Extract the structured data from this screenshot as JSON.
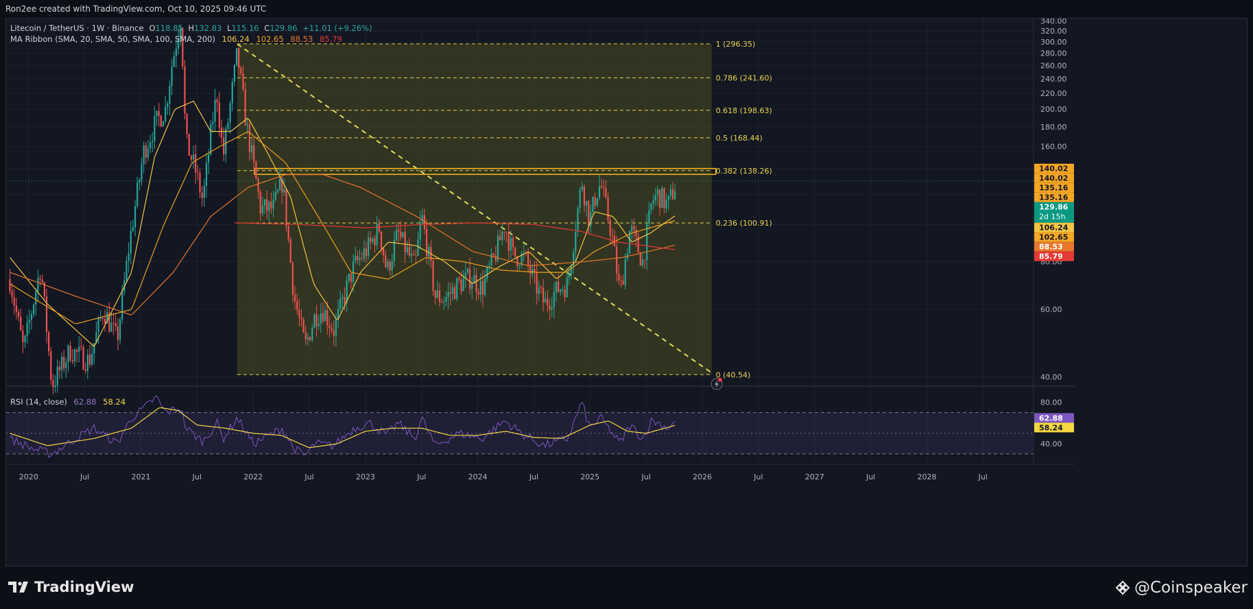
{
  "header": {
    "caption": "Ron2ee created with TradingView.com, Oct 10, 2025 09:46 UTC",
    "symbol": "Litecoin / TetherUS · 1W · Binance",
    "ohlc": {
      "o_label": "O",
      "o": "118.85",
      "h_label": "H",
      "h": "132.83",
      "l_label": "L",
      "l": "115.16",
      "c_label": "C",
      "c": "129.86",
      "change": "+11.01 (+9.26%)"
    },
    "ma_ribbon": {
      "label": "MA Ribbon (SMA, 20, SMA, 50, SMA, 100, SMA, 200)",
      "values": [
        "106.24",
        "102.65",
        "88.53",
        "85.79"
      ]
    },
    "rsi": {
      "label": "RSI (14, close)",
      "value": "62.88",
      "ma": "58.24"
    }
  },
  "footer": {
    "left_brand": "TradingView",
    "right_brand": "@Coinspeaker"
  },
  "colors": {
    "bull": "#26a69a",
    "bear": "#ef5350",
    "ma20": "#f5c542",
    "ma50": "#f0a020",
    "ma100": "#e8762b",
    "ma200": "#e53935",
    "fib": "#e8d44d",
    "rsi": "#7e57c2",
    "rsi_ma": "#f5d742",
    "price_tag": "#089981",
    "grid": "#1e222d"
  },
  "chart_data": [
    {
      "type": "candlestick",
      "title": "Litecoin / TetherUS · 1W · Binance",
      "xlabel": "",
      "ylabel": "",
      "ylim": [
        40,
        345
      ],
      "x_ticks": [
        "2020",
        "Jul",
        "2021",
        "Jul",
        "2022",
        "Jul",
        "2023",
        "Jul",
        "2024",
        "Jul",
        "2025",
        "Jul",
        "2026",
        "Jul",
        "2027",
        "Jul",
        "2028",
        "Jul"
      ],
      "y_ticks": [
        "340.00",
        "320.00",
        "300.00",
        "280.00",
        "260.00",
        "240.00",
        "220.00",
        "200.00",
        "180.00",
        "160.00",
        "140.00",
        "120.00",
        "100.00",
        "80.00",
        "60.00",
        "40.00"
      ],
      "price_anchors": [
        [
          "2019-11-01",
          72
        ],
        [
          "2019-12-15",
          47
        ],
        [
          "2020-02-10",
          78
        ],
        [
          "2020-03-16",
          38
        ],
        [
          "2020-05-15",
          47
        ],
        [
          "2020-07-15",
          44
        ],
        [
          "2020-09-01",
          60
        ],
        [
          "2020-10-15",
          50
        ],
        [
          "2020-11-25",
          90
        ],
        [
          "2021-01-10",
          155
        ],
        [
          "2021-02-20",
          185
        ],
        [
          "2021-03-20",
          200
        ],
        [
          "2021-04-10",
          260
        ],
        [
          "2021-05-10",
          350
        ],
        [
          "2021-05-25",
          165
        ],
        [
          "2021-06-25",
          140
        ],
        [
          "2021-07-20",
          115
        ],
        [
          "2021-08-20",
          185
        ],
        [
          "2021-09-05",
          220
        ],
        [
          "2021-09-25",
          150
        ],
        [
          "2021-11-10",
          280
        ],
        [
          "2021-12-10",
          180
        ],
        [
          "2021-12-31",
          145
        ],
        [
          "2022-01-25",
          110
        ],
        [
          "2022-03-05",
          110
        ],
        [
          "2022-04-05",
          130
        ],
        [
          "2022-05-12",
          65
        ],
        [
          "2022-06-18",
          48
        ],
        [
          "2022-07-20",
          58
        ],
        [
          "2022-08-15",
          60
        ],
        [
          "2022-09-20",
          53
        ],
        [
          "2022-11-05",
          70
        ],
        [
          "2022-11-25",
          78
        ],
        [
          "2023-01-15",
          88
        ],
        [
          "2023-02-15",
          98
        ],
        [
          "2023-03-10",
          75
        ],
        [
          "2023-04-15",
          95
        ],
        [
          "2023-06-10",
          77
        ],
        [
          "2023-07-01",
          106
        ],
        [
          "2023-08-15",
          65
        ],
        [
          "2023-09-15",
          64
        ],
        [
          "2023-11-01",
          70
        ],
        [
          "2023-12-10",
          73
        ],
        [
          "2024-01-15",
          68
        ],
        [
          "2024-03-01",
          85
        ],
        [
          "2024-03-28",
          100
        ],
        [
          "2024-04-25",
          83
        ],
        [
          "2024-06-01",
          82
        ],
        [
          "2024-07-05",
          70
        ],
        [
          "2024-08-05",
          62
        ],
        [
          "2024-09-20",
          68
        ],
        [
          "2024-10-20",
          70
        ],
        [
          "2024-11-15",
          100
        ],
        [
          "2024-12-05",
          130
        ],
        [
          "2024-12-30",
          102
        ],
        [
          "2025-01-20",
          120
        ],
        [
          "2025-02-05",
          128
        ],
        [
          "2025-03-10",
          95
        ],
        [
          "2025-04-07",
          66
        ],
        [
          "2025-05-10",
          98
        ],
        [
          "2025-06-20",
          80
        ],
        [
          "2025-07-20",
          115
        ],
        [
          "2025-08-10",
          120
        ],
        [
          "2025-09-10",
          112
        ],
        [
          "2025-10-10",
          129.86
        ]
      ],
      "moving_averages": [
        {
          "name": "SMA 20",
          "points": [
            [
              "2019-11-01",
              82
            ],
            [
              "2020-03-01",
              62
            ],
            [
              "2020-08-01",
              48
            ],
            [
              "2020-12-01",
              75
            ],
            [
              "2021-02-15",
              150
            ],
            [
              "2021-04-20",
              200
            ],
            [
              "2021-06-20",
              210
            ],
            [
              "2021-08-15",
              175
            ],
            [
              "2021-10-20",
              175
            ],
            [
              "2021-12-15",
              190
            ],
            [
              "2022-02-15",
              155
            ],
            [
              "2022-05-01",
              118
            ],
            [
              "2022-07-15",
              70
            ],
            [
              "2022-10-01",
              56
            ],
            [
              "2022-12-15",
              75
            ],
            [
              "2023-03-15",
              90
            ],
            [
              "2023-06-15",
              88
            ],
            [
              "2023-09-15",
              80
            ],
            [
              "2023-12-15",
              70
            ],
            [
              "2024-03-15",
              78
            ],
            [
              "2024-06-15",
              85
            ],
            [
              "2024-09-15",
              72
            ],
            [
              "2024-11-15",
              80
            ],
            [
              "2025-01-15",
              108
            ],
            [
              "2025-03-15",
              105
            ],
            [
              "2025-05-15",
              90
            ],
            [
              "2025-07-15",
              95
            ],
            [
              "2025-10-10",
              106.24
            ]
          ]
        },
        {
          "name": "SMA 50",
          "points": [
            [
              "2019-11-01",
              70
            ],
            [
              "2020-06-01",
              55
            ],
            [
              "2020-12-01",
              60
            ],
            [
              "2021-03-15",
              100
            ],
            [
              "2021-06-15",
              145
            ],
            [
              "2021-09-15",
              160
            ],
            [
              "2021-12-15",
              175
            ],
            [
              "2022-04-15",
              145
            ],
            [
              "2022-08-15",
              100
            ],
            [
              "2022-11-15",
              75
            ],
            [
              "2023-03-15",
              72
            ],
            [
              "2023-07-15",
              82
            ],
            [
              "2023-11-15",
              80
            ],
            [
              "2024-03-15",
              76
            ],
            [
              "2024-07-15",
              75
            ],
            [
              "2024-10-15",
              75
            ],
            [
              "2025-01-15",
              85
            ],
            [
              "2025-05-15",
              95
            ],
            [
              "2025-10-10",
              102.65
            ]
          ]
        },
        {
          "name": "SMA 100",
          "points": [
            [
              "2019-11-01",
              75
            ],
            [
              "2020-06-01",
              65
            ],
            [
              "2020-12-01",
              58
            ],
            [
              "2021-04-15",
              75
            ],
            [
              "2021-08-15",
              105
            ],
            [
              "2021-12-15",
              125
            ],
            [
              "2022-04-15",
              135
            ],
            [
              "2022-08-15",
              135
            ],
            [
              "2022-12-15",
              125
            ],
            [
              "2023-06-15",
              105
            ],
            [
              "2023-12-15",
              85
            ],
            [
              "2024-06-15",
              78
            ],
            [
              "2024-12-15",
              80
            ],
            [
              "2025-04-15",
              82
            ],
            [
              "2025-10-10",
              88.53
            ]
          ]
        },
        {
          "name": "SMA 200",
          "points": [
            [
              "2021-11-01",
              101
            ],
            [
              "2022-06-01",
              100
            ],
            [
              "2023-01-01",
              98
            ],
            [
              "2023-07-01",
              100
            ],
            [
              "2024-01-01",
              101
            ],
            [
              "2024-07-01",
              100
            ],
            [
              "2024-12-01",
              96
            ],
            [
              "2025-04-01",
              90
            ],
            [
              "2025-10-10",
              85.79
            ]
          ]
        }
      ],
      "fib_levels": [
        {
          "ratio": "1",
          "price": 296.35,
          "label": "1 (296.35)"
        },
        {
          "ratio": "0.786",
          "price": 241.6,
          "label": "0.786 (241.60)"
        },
        {
          "ratio": "0.618",
          "price": 198.63,
          "label": "0.618 (198.63)"
        },
        {
          "ratio": "0.5",
          "price": 168.44,
          "label": "0.5 (168.44)"
        },
        {
          "ratio": "0.382",
          "price": 138.26,
          "label": "0.382 (138.26)"
        },
        {
          "ratio": "0.236",
          "price": 100.91,
          "label": "0.236 (100.91)"
        },
        {
          "ratio": "0",
          "price": 40.54,
          "label": "0 (40.54)"
        }
      ],
      "fib_range": {
        "start": "2021-11-10",
        "end": "2026-02-01"
      },
      "trendline": {
        "start": [
          "2021-11-10",
          296
        ],
        "end": [
          "2026-02-01",
          41
        ]
      },
      "resistance_zone": {
        "start": "2022-01-05",
        "end": "2026-02-01",
        "low": 135.16,
        "high": 140.02
      },
      "last_price_line": 129.86,
      "axis_tags": [
        {
          "label": "140.02",
          "price": 140.02,
          "bg": "#f5a623",
          "fg": "#131722"
        },
        {
          "label": "140.02",
          "price": 140.02,
          "bg": "#f5a623",
          "fg": "#131722"
        },
        {
          "label": "135.16",
          "price": 135.16,
          "bg": "#f5a623",
          "fg": "#131722"
        },
        {
          "label": "135.16",
          "price": 135.16,
          "bg": "#f5a623",
          "fg": "#131722"
        },
        {
          "label": "129.86",
          "sub": "2d 15h",
          "price": 129.86,
          "bg": "#089981",
          "fg": "#ffffff"
        },
        {
          "label": "106.24",
          "price": 106.24,
          "bg": "#f5c542",
          "fg": "#131722"
        },
        {
          "label": "102.65",
          "price": 102.65,
          "bg": "#f5a623",
          "fg": "#131722"
        },
        {
          "label": "88.53",
          "price": 88.53,
          "bg": "#e8762b",
          "fg": "#ffffff"
        },
        {
          "label": "85.79",
          "price": 85.79,
          "bg": "#e53935",
          "fg": "#ffffff"
        }
      ]
    },
    {
      "type": "line",
      "title": "RSI (14, close)",
      "ylim": [
        20,
        95
      ],
      "y_ticks": [
        "80.00",
        "40.00"
      ],
      "bands": [
        70,
        30
      ],
      "series": [
        {
          "name": "RSI",
          "points": [
            [
              "2019-11-01",
              45
            ],
            [
              "2020-01-15",
              35
            ],
            [
              "2020-03-16",
              30
            ],
            [
              "2020-06-01",
              45
            ],
            [
              "2020-08-01",
              55
            ],
            [
              "2020-10-15",
              40
            ],
            [
              "2020-12-01",
              65
            ],
            [
              "2021-01-15",
              75
            ],
            [
              "2021-02-20",
              85
            ],
            [
              "2021-03-20",
              70
            ],
            [
              "2021-05-10",
              75
            ],
            [
              "2021-05-25",
              55
            ],
            [
              "2021-07-20",
              42
            ],
            [
              "2021-09-05",
              60
            ],
            [
              "2021-09-25",
              45
            ],
            [
              "2021-11-10",
              65
            ],
            [
              "2021-12-31",
              40
            ],
            [
              "2022-03-05",
              50
            ],
            [
              "2022-04-05",
              55
            ],
            [
              "2022-05-12",
              35
            ],
            [
              "2022-06-18",
              28
            ],
            [
              "2022-07-20",
              40
            ],
            [
              "2022-09-20",
              38
            ],
            [
              "2022-11-25",
              55
            ],
            [
              "2023-01-15",
              60
            ],
            [
              "2023-03-10",
              48
            ],
            [
              "2023-04-15",
              60
            ],
            [
              "2023-06-10",
              45
            ],
            [
              "2023-07-01",
              65
            ],
            [
              "2023-08-15",
              38
            ],
            [
              "2023-11-01",
              50
            ],
            [
              "2024-01-15",
              45
            ],
            [
              "2024-03-28",
              62
            ],
            [
              "2024-06-01",
              48
            ],
            [
              "2024-08-05",
              38
            ],
            [
              "2024-10-20",
              45
            ],
            [
              "2024-12-05",
              80
            ],
            [
              "2024-12-30",
              55
            ],
            [
              "2025-02-05",
              65
            ],
            [
              "2025-04-07",
              40
            ],
            [
              "2025-05-10",
              58
            ],
            [
              "2025-06-20",
              45
            ],
            [
              "2025-07-20",
              63
            ],
            [
              "2025-09-10",
              55
            ],
            [
              "2025-10-10",
              62.88
            ]
          ]
        },
        {
          "name": "RSI MA",
          "points": [
            [
              "2019-11-01",
              50
            ],
            [
              "2020-03-01",
              38
            ],
            [
              "2020-08-01",
              45
            ],
            [
              "2020-12-01",
              55
            ],
            [
              "2021-03-01",
              75
            ],
            [
              "2021-05-01",
              72
            ],
            [
              "2021-07-01",
              58
            ],
            [
              "2021-10-01",
              55
            ],
            [
              "2022-01-01",
              50
            ],
            [
              "2022-04-01",
              48
            ],
            [
              "2022-07-01",
              36
            ],
            [
              "2022-10-01",
              40
            ],
            [
              "2023-01-01",
              52
            ],
            [
              "2023-04-01",
              55
            ],
            [
              "2023-07-01",
              55
            ],
            [
              "2023-10-01",
              48
            ],
            [
              "2024-01-01",
              48
            ],
            [
              "2024-04-01",
              52
            ],
            [
              "2024-07-01",
              46
            ],
            [
              "2024-10-01",
              45
            ],
            [
              "2025-01-01",
              58
            ],
            [
              "2025-03-01",
              62
            ],
            [
              "2025-05-01",
              52
            ],
            [
              "2025-07-01",
              50
            ],
            [
              "2025-10-10",
              58.24
            ]
          ]
        }
      ]
    }
  ]
}
